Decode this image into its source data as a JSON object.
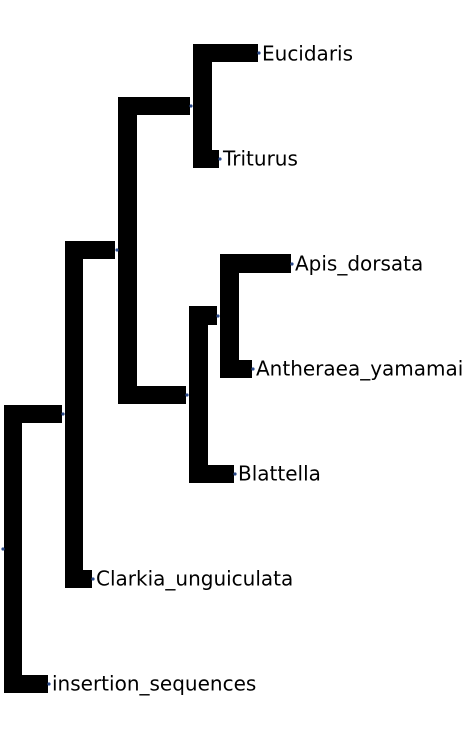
{
  "tree": {
    "leaves": [
      {
        "id": "eucidaris",
        "label": "Eucidaris"
      },
      {
        "id": "triturus",
        "label": "Triturus"
      },
      {
        "id": "apis",
        "label": "Apis_dorsata"
      },
      {
        "id": "antheraea",
        "label": "Antheraea_yamamai"
      },
      {
        "id": "blattella",
        "label": "Blattella"
      },
      {
        "id": "clarkia",
        "label": "Clarkia_unguiculata"
      },
      {
        "id": "insertion",
        "label": "insertion_sequences"
      }
    ],
    "colors": {
      "branch": "#000000",
      "node_dot": "#2b4a8a",
      "label": "#000000",
      "background": "#ffffff"
    }
  }
}
